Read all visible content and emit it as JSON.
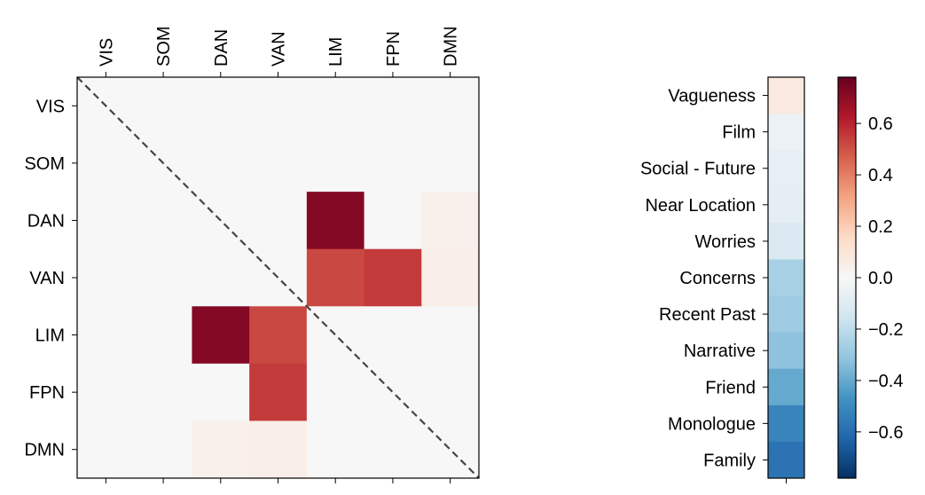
{
  "chart_data": [
    {
      "type": "heatmap",
      "title": "",
      "row_labels": [
        "VIS",
        "SOM",
        "DAN",
        "VAN",
        "LIM",
        "FPN",
        "DMN"
      ],
      "col_labels": [
        "VIS",
        "SOM",
        "DAN",
        "VAN",
        "LIM",
        "FPN",
        "DMN"
      ],
      "values": [
        [
          0,
          0,
          0,
          0,
          0,
          0,
          0
        ],
        [
          0,
          0,
          0,
          0,
          0,
          0,
          0
        ],
        [
          0,
          0,
          0,
          0,
          0.72,
          0,
          0.04
        ],
        [
          0,
          0,
          0,
          0,
          0.52,
          0.55,
          0.05
        ],
        [
          0,
          0,
          0.72,
          0.52,
          0,
          0,
          0
        ],
        [
          0,
          0,
          0,
          0.55,
          0,
          0,
          0
        ],
        [
          0,
          0,
          0.04,
          0.05,
          0,
          0,
          0
        ]
      ],
      "diagonal_line": "dashed",
      "colormap": "RdBu_r",
      "vmin": -0.78,
      "vmax": 0.78
    },
    {
      "type": "heatmap",
      "title": "",
      "row_labels": [
        "Vagueness",
        "Film",
        "Social - Future",
        "Near Location",
        "Worries",
        "Concerns",
        "Recent Past",
        "Narrative",
        "Friend",
        "Monologue",
        "Family"
      ],
      "values": [
        0.08,
        -0.05,
        -0.07,
        -0.08,
        -0.12,
        -0.26,
        -0.28,
        -0.32,
        -0.4,
        -0.52,
        -0.58
      ],
      "colormap": "RdBu_r",
      "vmin": -0.78,
      "vmax": 0.78
    },
    {
      "type": "colorbar",
      "tick_values": [
        0.6,
        0.4,
        0.2,
        0.0,
        -0.2,
        -0.4,
        -0.6
      ],
      "tick_labels": [
        "0.6",
        "0.4",
        "0.2",
        "0.0",
        "−0.2",
        "−0.4",
        "−0.6"
      ],
      "vmin": -0.78,
      "vmax": 0.78,
      "colormap": "RdBu_r"
    }
  ]
}
